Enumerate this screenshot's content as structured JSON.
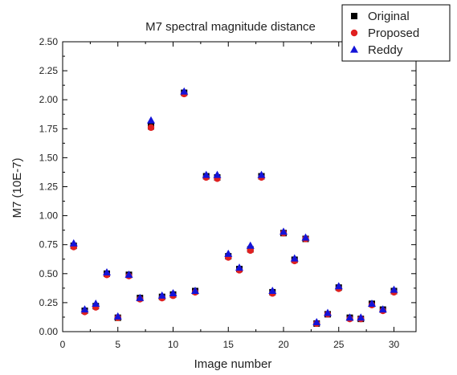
{
  "chart_data": {
    "type": "scatter",
    "title": "M7 spectral magnitude distance",
    "xlabel": "Image number",
    "ylabel": "M7 (10E-7)",
    "xlim": [
      0,
      32
    ],
    "ylim": [
      0,
      2.5
    ],
    "xticks": [
      "0",
      "5",
      "10",
      "15",
      "20",
      "25",
      "30"
    ],
    "yticks": [
      "0.00",
      "0.25",
      "0.50",
      "0.75",
      "1.00",
      "1.25",
      "1.50",
      "1.75",
      "2.00",
      "2.25",
      "2.50"
    ],
    "grid": false,
    "legend_position": "top-right",
    "x": [
      1,
      2,
      3,
      4,
      5,
      6,
      7,
      8,
      9,
      10,
      11,
      12,
      13,
      14,
      15,
      16,
      17,
      18,
      19,
      20,
      21,
      22,
      23,
      24,
      25,
      26,
      27,
      28,
      29,
      30
    ],
    "series": [
      {
        "name": "Original",
        "marker": "square",
        "color": "#000000",
        "values": [
          0.74,
          0.18,
          0.22,
          0.5,
          0.12,
          0.49,
          0.29,
          1.77,
          0.3,
          0.32,
          2.06,
          0.35,
          1.34,
          1.33,
          0.65,
          0.54,
          0.71,
          1.34,
          0.34,
          0.85,
          0.62,
          0.8,
          0.07,
          0.15,
          0.38,
          0.12,
          0.11,
          0.24,
          0.19,
          0.35
        ]
      },
      {
        "name": "Proposed",
        "marker": "circle",
        "color": "#e02020",
        "values": [
          0.73,
          0.17,
          0.21,
          0.49,
          0.12,
          0.48,
          0.28,
          1.76,
          0.29,
          0.31,
          2.05,
          0.34,
          1.33,
          1.32,
          0.64,
          0.53,
          0.7,
          1.33,
          0.33,
          0.85,
          0.61,
          0.8,
          0.07,
          0.15,
          0.37,
          0.11,
          0.11,
          0.23,
          0.18,
          0.34
        ]
      },
      {
        "name": "Reddy",
        "marker": "triangle",
        "color": "#1414d8",
        "values": [
          0.76,
          0.19,
          0.24,
          0.51,
          0.13,
          0.49,
          0.29,
          1.82,
          0.31,
          0.33,
          2.07,
          0.35,
          1.35,
          1.35,
          0.67,
          0.55,
          0.74,
          1.35,
          0.35,
          0.86,
          0.63,
          0.81,
          0.08,
          0.16,
          0.39,
          0.12,
          0.12,
          0.24,
          0.19,
          0.36
        ]
      }
    ]
  }
}
